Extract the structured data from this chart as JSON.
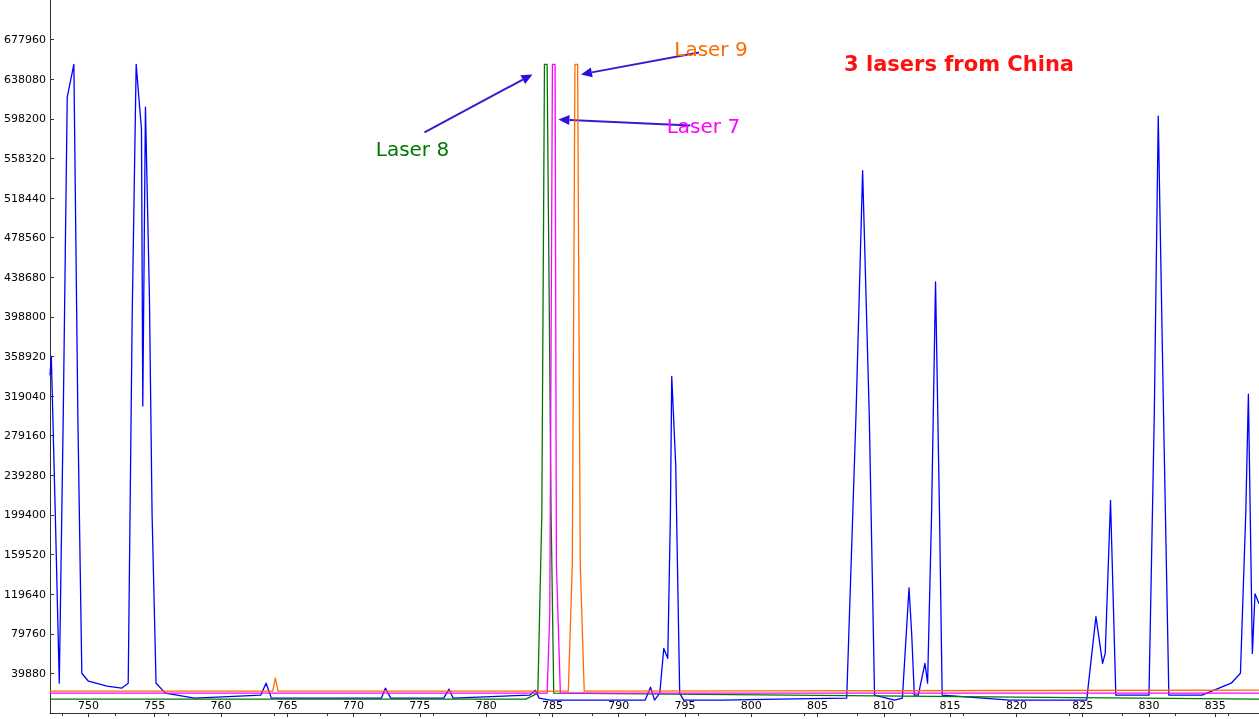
{
  "chart_data": {
    "type": "line",
    "title": "3 lasers from China",
    "xlim": [
      747.1,
      838.3
    ],
    "xticks": [
      750,
      755,
      760,
      765,
      770,
      775,
      780,
      785,
      790,
      795,
      800,
      805,
      810,
      815,
      820,
      825,
      830,
      835
    ],
    "ylim": [
      0,
      717840
    ],
    "yticks": [
      39880,
      79760,
      119640,
      159520,
      199400,
      239280,
      279160,
      319040,
      358920,
      398800,
      438680,
      478560,
      518440,
      558320,
      598200,
      638080,
      677960
    ],
    "grid": false,
    "legend": false,
    "marker": "none",
    "line_style": "solid",
    "series": [
      {
        "color": "#0000ff",
        "x": [
          747.1,
          747.2,
          747.5,
          747.8,
          748.1,
          748.4,
          748.9,
          749.2,
          749.5,
          750.0,
          751.4,
          752.5,
          753.0,
          753.3,
          753.6,
          753.8,
          754.0,
          754.1,
          754.3,
          754.6,
          754.8,
          755.1,
          755.8,
          758.0,
          763.0,
          763.4,
          763.8,
          772.1,
          772.4,
          772.8,
          776.8,
          777.2,
          777.5,
          783.3,
          783.7,
          784.0,
          784.8,
          792.0,
          792.4,
          792.7,
          793.1,
          793.4,
          793.7,
          793.9,
          794.0,
          794.3,
          794.6,
          794.9,
          797.8,
          807.2,
          807.9,
          808.4,
          808.9,
          809.3,
          810.8,
          811.4,
          811.9,
          812.1,
          812.3,
          812.6,
          813.1,
          813.3,
          813.6,
          813.9,
          814.2,
          814.4,
          819.5,
          825.3,
          826.0,
          826.5,
          826.7,
          827.1,
          827.5,
          830.0,
          830.4,
          830.7,
          831.1,
          831.5,
          834.0,
          836.2,
          836.9,
          837.3,
          837.5,
          837.8,
          838.0,
          838.3
        ],
        "values": [
          340000,
          359000,
          200000,
          30000,
          300000,
          620000,
          653000,
          300000,
          40000,
          32000,
          27000,
          25000,
          30000,
          400000,
          653000,
          620000,
          588000,
          309000,
          610000,
          419000,
          200000,
          30000,
          20000,
          15000,
          18000,
          30000,
          15000,
          15000,
          25000,
          15000,
          15000,
          24000,
          15000,
          18000,
          23000,
          15000,
          13000,
          13000,
          26000,
          13000,
          20000,
          65000,
          55000,
          200000,
          339000,
          250000,
          20000,
          13000,
          13000,
          15000,
          300000,
          546000,
          300000,
          18000,
          13000,
          15000,
          126000,
          80000,
          18000,
          18000,
          50000,
          30000,
          200000,
          434000,
          200000,
          18000,
          13000,
          13000,
          97000,
          50000,
          60000,
          214000,
          18000,
          18000,
          300000,
          601000,
          300000,
          18000,
          18000,
          30000,
          40000,
          200000,
          321000,
          60000,
          120000,
          110000
        ]
      },
      {
        "name": "Laser 8",
        "color": "#007800",
        "x": [
          747.1,
          783.0,
          783.9,
          784.2,
          784.4,
          784.6,
          784.9,
          785.1,
          838.3
        ],
        "values": [
          14000,
          14000,
          20000,
          200000,
          653000,
          653000,
          200000,
          20000,
          14000
        ]
      },
      {
        "name": "Laser 7",
        "color": "#ff00ff",
        "x": [
          747.1,
          784.6,
          784.8,
          785.0,
          785.2,
          785.3,
          785.6,
          838.3
        ],
        "values": [
          20000,
          20000,
          100000,
          653000,
          653000,
          150000,
          20000,
          20000
        ]
      },
      {
        "name": "Laser 9",
        "color": "#ff6a00",
        "x": [
          747.1,
          763.9,
          764.1,
          764.3,
          786.2,
          786.5,
          786.7,
          786.9,
          787.1,
          787.4,
          838.3
        ],
        "values": [
          22000,
          22000,
          35000,
          22000,
          22000,
          150000,
          653000,
          653000,
          150000,
          22000,
          23000
        ]
      }
    ]
  }
}
